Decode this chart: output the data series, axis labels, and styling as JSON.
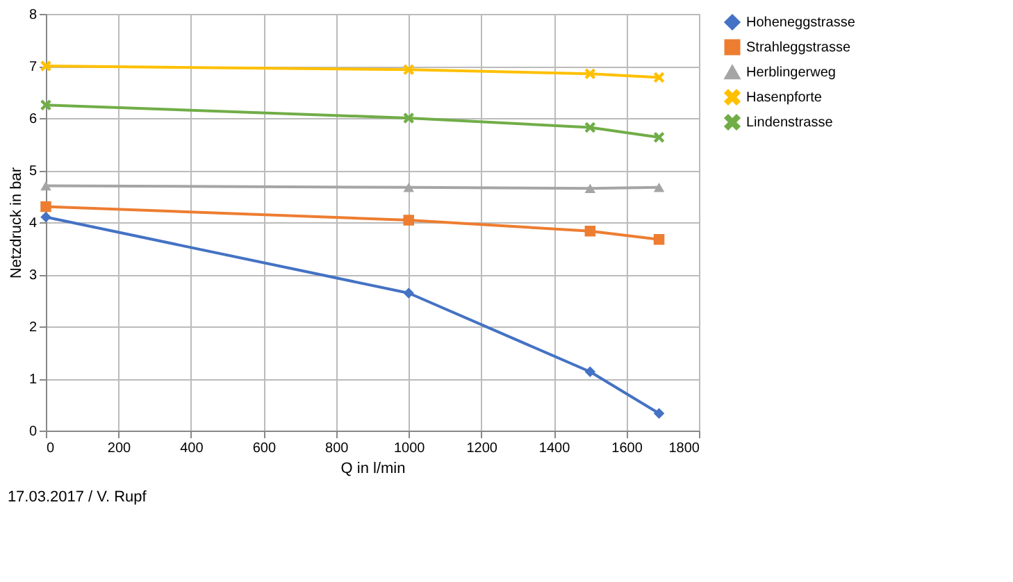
{
  "chart_data": {
    "type": "line",
    "xlabel": "Q in l/min",
    "ylabel": "Netzdruck in bar",
    "x": [
      0,
      1000,
      1500,
      1690
    ],
    "series": [
      {
        "name": "Hoheneggstrasse",
        "color": "#4472c4",
        "marker": "diamond",
        "values": [
          4.1,
          2.64,
          1.13,
          0.33
        ]
      },
      {
        "name": "Strahleggstrasse",
        "color": "#ed7d31",
        "marker": "square",
        "values": [
          4.3,
          4.04,
          3.83,
          3.67
        ]
      },
      {
        "name": "Herblingerweg",
        "color": "#a5a5a5",
        "marker": "triangle",
        "values": [
          4.7,
          4.67,
          4.65,
          4.67
        ]
      },
      {
        "name": "Hasenpforte",
        "color": "#ffc000",
        "marker": "cross",
        "values": [
          7.0,
          6.93,
          6.85,
          6.78
        ]
      },
      {
        "name": "Lindenstrasse",
        "color": "#70ad47",
        "marker": "cross",
        "values": [
          6.25,
          6.0,
          5.82,
          5.63
        ]
      }
    ],
    "xlim": [
      0,
      1800
    ],
    "xticks": [
      0,
      200,
      400,
      600,
      800,
      1000,
      1200,
      1400,
      1600,
      1800
    ],
    "ylim": [
      0,
      8
    ],
    "yticks": [
      0,
      1,
      2,
      3,
      4,
      5,
      6,
      7,
      8
    ],
    "grid": true,
    "legend": "right",
    "line_style": "solid",
    "annotations": [
      "17.03.2017 / V. Rupf"
    ]
  }
}
